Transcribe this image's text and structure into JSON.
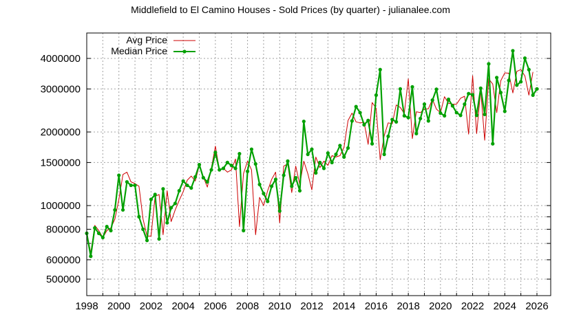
{
  "chart_data": {
    "type": "line",
    "title": "Middlefield to El Camino Houses - Sold Prices (by quarter) - julianalee.com",
    "xlabel": "",
    "ylabel": "",
    "x_scale": "linear",
    "y_scale": "log",
    "xlim": [
      1998,
      2026.85
    ],
    "ylim": [
      420000,
      4800000
    ],
    "grid": true,
    "legend_position": "top-left",
    "x_ticks": [
      "1998",
      "2000",
      "2002",
      "2004",
      "2006",
      "2008",
      "2010",
      "2012",
      "2014",
      "2016",
      "2018",
      "2020",
      "2022",
      "2024",
      "2026"
    ],
    "y_ticks": [
      "500000",
      "600000",
      "800000",
      "1000000",
      "1500000",
      "2000000",
      "3000000",
      "4000000"
    ],
    "y_minor_grid": [
      700000,
      900000
    ],
    "x": [
      1998.0,
      1998.25,
      1998.5,
      1998.75,
      1999.0,
      1999.25,
      1999.5,
      1999.75,
      2000.0,
      2000.25,
      2000.5,
      2000.75,
      2001.0,
      2001.25,
      2001.5,
      2001.75,
      2002.0,
      2002.25,
      2002.5,
      2002.75,
      2003.0,
      2003.25,
      2003.5,
      2003.75,
      2004.0,
      2004.25,
      2004.5,
      2004.75,
      2005.0,
      2005.25,
      2005.5,
      2005.75,
      2006.0,
      2006.25,
      2006.5,
      2006.75,
      2007.0,
      2007.25,
      2007.5,
      2007.75,
      2008.0,
      2008.25,
      2008.5,
      2008.75,
      2009.0,
      2009.25,
      2009.5,
      2009.75,
      2010.0,
      2010.25,
      2010.5,
      2010.75,
      2011.0,
      2011.25,
      2011.5,
      2011.75,
      2012.0,
      2012.25,
      2012.5,
      2012.75,
      2013.0,
      2013.25,
      2013.5,
      2013.75,
      2014.0,
      2014.25,
      2014.5,
      2014.75,
      2015.0,
      2015.25,
      2015.5,
      2015.75,
      2016.0,
      2016.25,
      2016.5,
      2016.75,
      2017.0,
      2017.25,
      2017.5,
      2017.75,
      2018.0,
      2018.25,
      2018.5,
      2018.75,
      2019.0,
      2019.25,
      2019.5,
      2019.75,
      2020.0,
      2020.25,
      2020.5,
      2020.75,
      2021.0,
      2021.25,
      2021.5,
      2021.75,
      2022.0,
      2022.25,
      2022.5,
      2022.75,
      2023.0,
      2023.25,
      2023.5,
      2023.75,
      2024.0,
      2024.25,
      2024.5,
      2024.75,
      2025.0,
      2025.25,
      2025.5,
      2025.75,
      2026.0
    ],
    "series": [
      {
        "name": "Avg Price",
        "color": "#cc0000",
        "values": [
          780000,
          640000,
          830000,
          790000,
          740000,
          790000,
          810000,
          880000,
          1060000,
          1340000,
          1370000,
          1250000,
          1230000,
          1200000,
          880000,
          750000,
          750000,
          1090000,
          1110000,
          760000,
          1150000,
          860000,
          960000,
          1050000,
          1140000,
          1270000,
          1320000,
          1260000,
          1460000,
          1310000,
          1190000,
          1420000,
          1750000,
          1400000,
          1420000,
          1370000,
          1400000,
          1550000,
          820000,
          1350000,
          1520000,
          1400000,
          760000,
          1080000,
          1000000,
          1150000,
          1280000,
          1370000,
          850000,
          1450000,
          1480000,
          1130000,
          1450000,
          1220000,
          1520000,
          1350000,
          1160000,
          1580000,
          1430000,
          1520000,
          1460000,
          1600000,
          1580000,
          1600000,
          1730000,
          2230000,
          2390000,
          2200000,
          2180000,
          2190000,
          1780000,
          2640000,
          2500000,
          1540000,
          1930000,
          2180000,
          2160000,
          2580000,
          2520000,
          2380000,
          3300000,
          1880000,
          2420000,
          2400000,
          2480000,
          2490000,
          2720000,
          2480000,
          2400000,
          2790000,
          2620000,
          2600000,
          2600000,
          2750000,
          2800000,
          1960000,
          3400000,
          1970000,
          2970000,
          1850000,
          3300000,
          3140000,
          2400000,
          3240000,
          3490000,
          3480000,
          2890000,
          3540000,
          3600000,
          3390000,
          2830000,
          3520000
        ],
        "marker": "none"
      },
      {
        "name": "Median Price",
        "color": "#00a000",
        "values": [
          770000,
          620000,
          810000,
          770000,
          740000,
          820000,
          790000,
          960000,
          1330000,
          960000,
          1250000,
          1210000,
          1210000,
          900000,
          800000,
          720000,
          1060000,
          1110000,
          730000,
          1170000,
          850000,
          980000,
          1020000,
          1150000,
          1260000,
          1210000,
          1180000,
          1310000,
          1470000,
          1300000,
          1250000,
          1400000,
          1650000,
          1400000,
          1420000,
          1500000,
          1460000,
          1420000,
          1630000,
          790000,
          1380000,
          1700000,
          1480000,
          1220000,
          1120000,
          1040000,
          1200000,
          1280000,
          950000,
          1330000,
          1520000,
          1200000,
          1300000,
          1150000,
          2210000,
          1620000,
          1700000,
          1360000,
          1500000,
          1420000,
          1640000,
          1500000,
          1620000,
          1760000,
          1580000,
          1720000,
          2220000,
          2540000,
          2400000,
          2140000,
          2230000,
          1790000,
          2830000,
          3600000,
          1620000,
          1920000,
          2250000,
          2200000,
          3000000,
          2330000,
          2290000,
          3060000,
          1970000,
          2270000,
          2600000,
          2220000,
          2700000,
          2990000,
          2390000,
          2330000,
          2720000,
          2560000,
          2400000,
          2340000,
          2600000,
          2870000,
          2840000,
          2340000,
          3020000,
          2360000,
          3800000,
          1790000,
          3340000,
          2900000,
          2430000,
          3250000,
          4300000,
          3110000,
          3210000,
          4010000,
          3600000,
          2830000,
          3000000
        ]
      }
    ]
  },
  "legend": {
    "items": [
      {
        "label": "Avg Price",
        "color": "#cc0000"
      },
      {
        "label": "Median Price",
        "color": "#00a000"
      }
    ]
  }
}
